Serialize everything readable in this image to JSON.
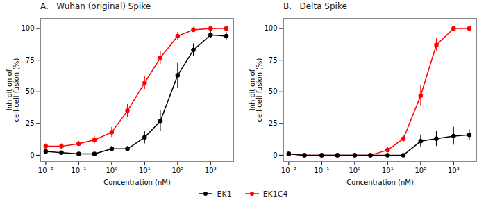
{
  "chart_data": [
    {
      "type": "line",
      "title": "A.   Wuhan (original) Spike",
      "xlabel": "Concentration (nM)",
      "ylabel": "Inhibition of\ncell-cell fusion (%)",
      "log": "x",
      "legend": "bottom",
      "xlim": [
        0.007,
        5000
      ],
      "xticks": [
        {
          "value": 0.01,
          "label": "10⁻²"
        },
        {
          "value": 0.1,
          "label": "10⁻¹"
        },
        {
          "value": 1,
          "label": "10⁰"
        },
        {
          "value": 10,
          "label": "10¹"
        },
        {
          "value": 100,
          "label": "10²"
        },
        {
          "value": 1000,
          "label": "10³"
        }
      ],
      "ylim": [
        -5,
        108
      ],
      "yticks": [
        0,
        25,
        50,
        75,
        100
      ],
      "x": [
        0.01,
        0.03,
        0.1,
        0.3,
        1.0,
        3.0,
        10,
        30,
        100,
        300,
        1000,
        3000
      ],
      "series": [
        {
          "name": "EK1",
          "color": "black",
          "marker": "circle",
          "values": [
            3,
            2,
            1,
            1,
            5,
            5,
            14,
            27,
            63,
            83,
            95,
            94
          ],
          "errors": [
            1,
            1,
            1,
            1,
            2,
            2,
            5,
            8,
            10,
            5,
            3,
            3
          ]
        },
        {
          "name": "EK1C4",
          "color": "red",
          "marker": "circle",
          "values": [
            7,
            7,
            9,
            12,
            18,
            35,
            57,
            77,
            94,
            99,
            100,
            100
          ],
          "errors": [
            2,
            2,
            2,
            3,
            4,
            5,
            5,
            5,
            3,
            2,
            1,
            1
          ]
        }
      ]
    },
    {
      "type": "line",
      "title": "B.   Delta Spike",
      "xlabel": "Concentration (nM)",
      "ylabel": "Inhibition of\ncell-cell fusion (%)",
      "log": "x",
      "legend": "bottom",
      "xlim": [
        0.007,
        5000
      ],
      "xticks": [
        {
          "value": 0.01,
          "label": "10⁻²"
        },
        {
          "value": 0.1,
          "label": "10⁻¹"
        },
        {
          "value": 1,
          "label": "10⁰"
        },
        {
          "value": 10,
          "label": "10¹"
        },
        {
          "value": 100,
          "label": "10²"
        },
        {
          "value": 1000,
          "label": "10³"
        }
      ],
      "ylim": [
        -5,
        108
      ],
      "yticks": [
        0,
        25,
        50,
        75,
        100
      ],
      "x": [
        0.01,
        0.03,
        0.1,
        0.3,
        1.0,
        3.0,
        10,
        30,
        100,
        300,
        1000,
        3000
      ],
      "series": [
        {
          "name": "EK1",
          "color": "black",
          "marker": "circle",
          "values": [
            1,
            0,
            0,
            0,
            0,
            0,
            0,
            0,
            11,
            13,
            15,
            16
          ],
          "errors": [
            1,
            1,
            1,
            1,
            1,
            1,
            1,
            1,
            5,
            6,
            7,
            4
          ]
        },
        {
          "name": "EK1C4",
          "color": "red",
          "marker": "circle",
          "values": [
            1,
            0,
            0,
            0,
            0,
            0,
            4,
            13,
            47,
            87,
            100,
            100
          ],
          "errors": [
            1,
            1,
            1,
            1,
            1,
            1,
            2,
            3,
            8,
            5,
            2,
            1
          ]
        }
      ]
    }
  ]
}
